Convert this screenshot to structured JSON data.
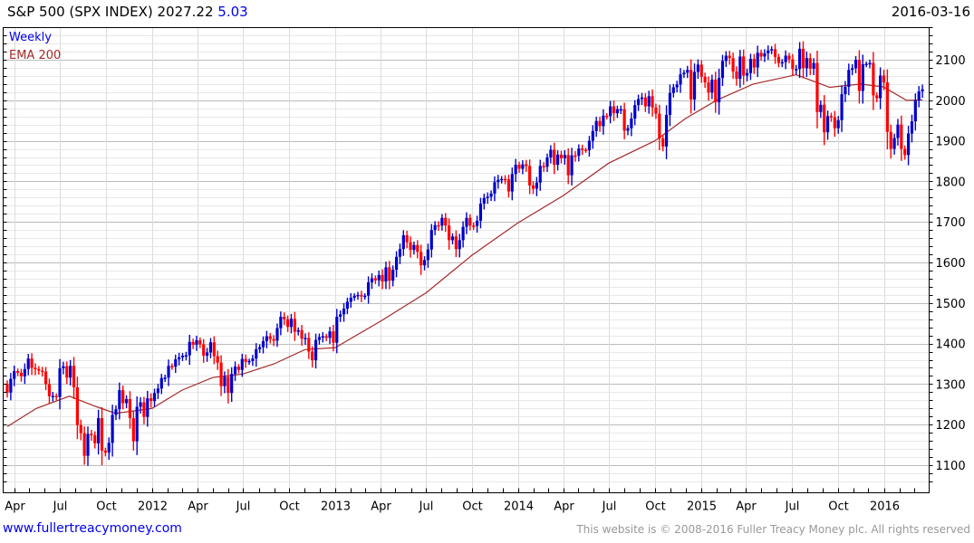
{
  "header": {
    "symbol": "S&P 500 (SPX INDEX)",
    "last": "2027.22",
    "change": "5.03",
    "date": "2016-03-16"
  },
  "footer": {
    "site": "www.fullertreacymoney.com",
    "copyright": "This website is © 2008-2016 Fuller Treacy Money plc. All rights reserved"
  },
  "colors": {
    "up": "#0000cc",
    "down": "#ff0000",
    "ema": "#a52a2a",
    "legend_weekly": "#0000ee"
  },
  "chart_data": {
    "type": "candlestick",
    "title": "S&P 500 (SPX INDEX)",
    "legend": [
      "Weekly",
      "EMA 200"
    ],
    "legend_placement": "top-left",
    "ylim": [
      1040,
      2180
    ],
    "yticks": [
      1100,
      1200,
      1300,
      1400,
      1500,
      1600,
      1700,
      1800,
      1900,
      2000,
      2100
    ],
    "xticks": [
      {
        "date": "2011-04-01",
        "label": "Apr"
      },
      {
        "date": "2011-07-01",
        "label": "Jul"
      },
      {
        "date": "2011-10-01",
        "label": "Oct"
      },
      {
        "date": "2012-01-01",
        "label": "2012"
      },
      {
        "date": "2012-04-01",
        "label": "Apr"
      },
      {
        "date": "2012-07-01",
        "label": "Jul"
      },
      {
        "date": "2012-10-01",
        "label": "Oct"
      },
      {
        "date": "2013-01-01",
        "label": "2013"
      },
      {
        "date": "2013-04-01",
        "label": "Apr"
      },
      {
        "date": "2013-07-01",
        "label": "Jul"
      },
      {
        "date": "2013-10-01",
        "label": "Oct"
      },
      {
        "date": "2014-01-01",
        "label": "2014"
      },
      {
        "date": "2014-04-01",
        "label": "Apr"
      },
      {
        "date": "2014-07-01",
        "label": "Jul"
      },
      {
        "date": "2014-10-01",
        "label": "Oct"
      },
      {
        "date": "2015-01-01",
        "label": "2015"
      },
      {
        "date": "2015-04-01",
        "label": "Apr"
      },
      {
        "date": "2015-07-01",
        "label": "Jul"
      },
      {
        "date": "2015-10-01",
        "label": "Oct"
      },
      {
        "date": "2016-01-01",
        "label": "2016"
      }
    ],
    "first_week": "2011-03-18",
    "first_open": 1300,
    "weekly_close": [
      1279,
      1313,
      1332,
      1328,
      1319,
      1337,
      1363,
      1340,
      1337,
      1333,
      1331,
      1300,
      1270,
      1271,
      1268,
      1339,
      1344,
      1316,
      1345,
      1292,
      1199,
      1179,
      1123,
      1177,
      1174,
      1154,
      1216,
      1136,
      1131,
      1155,
      1224,
      1238,
      1285,
      1253,
      1263,
      1216,
      1159,
      1244,
      1255,
      1219,
      1265,
      1258,
      1278,
      1289,
      1315,
      1316,
      1345,
      1343,
      1361,
      1366,
      1370,
      1371,
      1404,
      1397,
      1408,
      1398,
      1370,
      1378,
      1403,
      1369,
      1353,
      1295,
      1318,
      1278,
      1325,
      1343,
      1335,
      1362,
      1355,
      1357,
      1363,
      1386,
      1391,
      1406,
      1418,
      1411,
      1407,
      1438,
      1466,
      1460,
      1441,
      1461,
      1429,
      1433,
      1412,
      1414,
      1380,
      1359,
      1409,
      1416,
      1418,
      1414,
      1430,
      1402,
      1466,
      1472,
      1486,
      1503,
      1513,
      1518,
      1520,
      1516,
      1518,
      1551,
      1561,
      1556,
      1569,
      1553,
      1588,
      1555,
      1582,
      1614,
      1633,
      1667,
      1650,
      1631,
      1643,
      1626,
      1593,
      1606,
      1632,
      1680,
      1692,
      1691,
      1710,
      1691,
      1655,
      1664,
      1633,
      1655,
      1688,
      1710,
      1691,
      1690,
      1703,
      1745,
      1759,
      1762,
      1770,
      1798,
      1804,
      1806,
      1805,
      1775,
      1818,
      1841,
      1831,
      1842,
      1838,
      1790,
      1782,
      1797,
      1838,
      1836,
      1859,
      1878,
      1841,
      1866,
      1857,
      1865,
      1815,
      1864,
      1863,
      1881,
      1878,
      1877,
      1900,
      1924,
      1949,
      1936,
      1962,
      1961,
      1985,
      1968,
      1978,
      1978,
      1925,
      1931,
      1955,
      1988,
      2003,
      2007,
      1985,
      2010,
      1982,
      1967,
      1906,
      1886,
      1964,
      2018,
      2032,
      2039,
      2064,
      2068,
      2075,
      2002,
      2070,
      2088,
      2058,
      2044,
      2019,
      2051,
      1995,
      2055,
      2097,
      2110,
      2104,
      2071,
      2053,
      2108,
      2061,
      2067,
      2102,
      2081,
      2117,
      2108,
      2116,
      2123,
      2126,
      2107,
      2092,
      2094,
      2110,
      2101,
      2077,
      2077,
      2127,
      2079,
      2104,
      2078,
      2092,
      1971,
      1989,
      1921,
      1961,
      1958,
      1931,
      1951,
      2015,
      2033,
      2075,
      2079,
      2100,
      2023,
      2089,
      2090,
      2092,
      2012,
      2005,
      2061,
      2044,
      1922,
      1880,
      1907,
      1940,
      1880,
      1865,
      1918,
      1948,
      2000,
      2022,
      2027
    ],
    "ema_200": [
      [
        "2011-03-18",
        1195
      ],
      [
        "2011-05-15",
        1240
      ],
      [
        "2011-07-20",
        1270
      ],
      [
        "2011-09-10",
        1245
      ],
      [
        "2011-10-20",
        1228
      ],
      [
        "2012-01-01",
        1240
      ],
      [
        "2012-03-01",
        1285
      ],
      [
        "2012-05-01",
        1316
      ],
      [
        "2012-07-01",
        1325
      ],
      [
        "2012-09-01",
        1350
      ],
      [
        "2012-11-01",
        1385
      ],
      [
        "2013-01-01",
        1390
      ],
      [
        "2013-04-01",
        1455
      ],
      [
        "2013-07-01",
        1525
      ],
      [
        "2013-10-01",
        1618
      ],
      [
        "2014-01-01",
        1698
      ],
      [
        "2014-04-01",
        1765
      ],
      [
        "2014-07-01",
        1845
      ],
      [
        "2014-10-01",
        1900
      ],
      [
        "2014-12-01",
        1955
      ],
      [
        "2015-02-01",
        2000
      ],
      [
        "2015-04-15",
        2040
      ],
      [
        "2015-07-10",
        2063
      ],
      [
        "2015-09-15",
        2032
      ],
      [
        "2015-11-15",
        2040
      ],
      [
        "2015-12-31",
        2033
      ],
      [
        "2016-02-15",
        2000
      ],
      [
        "2016-03-18",
        2001
      ]
    ]
  }
}
